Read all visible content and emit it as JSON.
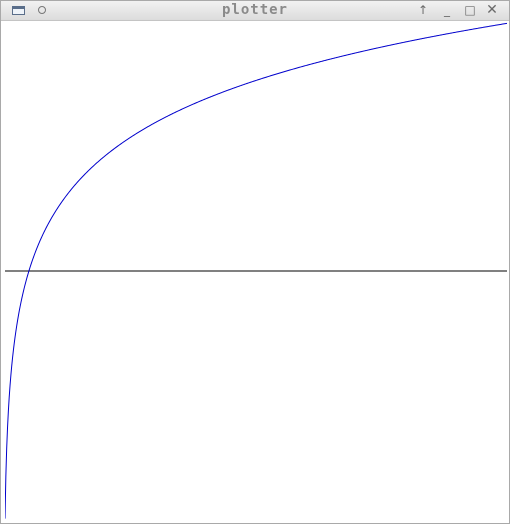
{
  "window": {
    "title": "plotter"
  },
  "titlebar": {
    "left_icons": [
      "window-menu-icon",
      "sticky-pin-icon"
    ],
    "right_icons": [
      "keep-above-icon",
      "minimize-icon",
      "maximize-icon",
      "close-icon"
    ],
    "glyphs": {
      "above": "↑",
      "minimize": "_",
      "maximize": "□",
      "close": "✕"
    }
  },
  "plot": {
    "background": "#ffffff",
    "curve_color": "#0000cc",
    "axis_color": "#000000",
    "function": "log(x)",
    "x_range": [
      0.05,
      20
    ],
    "y_range": [
      -3,
      3
    ],
    "axis_y_value": 0
  }
}
